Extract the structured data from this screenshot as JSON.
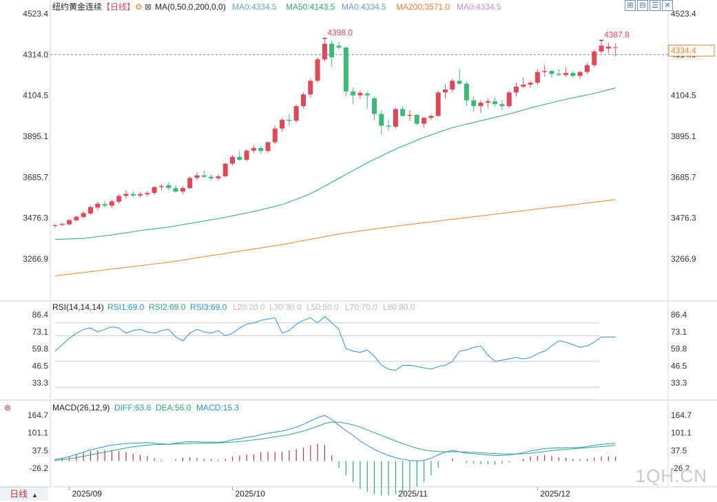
{
  "colors": {
    "up": "#e04858",
    "down": "#3cb878",
    "ma50": "#2aa876",
    "ma200": "#f08030",
    "rsi": "#2f8fd8",
    "diff": "#2f8fd8",
    "dea": "#2aa876",
    "macd_up": "#c0304c",
    "macd_down": "#2aa876",
    "ref": "#5a8ac0"
  },
  "header": {
    "title": "纽约黄金连续",
    "period": "【日线】",
    "gear": "⚙",
    "ma_params": "MA(0,50,0,200,0,0)",
    "ma1": "MA0:4334.5",
    "ma2": "MA50:4143.5",
    "ma3": "MA0:4334.5",
    "ma4": "MA200:3571.0",
    "ma5": "MA0:4334.5"
  },
  "toolbar": {
    "zoom_in": "⊞",
    "zoom_out": "⊟",
    "settings": "☰",
    "close": "✕"
  },
  "rsi_header": {
    "label": "RSI(14,14,14)",
    "rsi1": "RSI1:69.0",
    "rsi2": "RSI2:69.0",
    "rsi3": "RSI3:69.0",
    "l20": "L20:20.0",
    "l30": "L30:30.0",
    "l50": "L50:50.0",
    "l70": "L70:70.0",
    "l80": "L80:80.0"
  },
  "macd_header": {
    "label": "MACD(26,12,9)",
    "diff": "DIFF:63.6",
    "dea": "DEA:56.0",
    "macd": "MACD:15.3"
  },
  "bottom": {
    "period_button": "日线",
    "arrow": "▲"
  },
  "watermark": "1QH.CN",
  "chart_data": {
    "type": "candlestick",
    "title": "纽约黄金连续",
    "price_axis": {
      "ticks": [
        4523.4,
        4314.0,
        4104.5,
        3895.1,
        3685.7,
        3476.3,
        3266.9
      ],
      "ylim": [
        3159,
        4548
      ],
      "current_price": 4334.4,
      "current_label": "4334.4",
      "reference_line": 4314.0
    },
    "annotations": [
      {
        "label": "4398.0",
        "value": 4398.0,
        "index": 38
      },
      {
        "label": "4387.8",
        "value": 4387.8,
        "index": 77
      }
    ],
    "x_labels": [
      {
        "label": "2025/09",
        "index": 2
      },
      {
        "label": "2025/10",
        "index": 25
      },
      {
        "label": "2025/11",
        "index": 48
      },
      {
        "label": "2025/12",
        "index": 68
      }
    ],
    "candles": [
      [
        3436,
        3445,
        3428,
        3440
      ],
      [
        3441,
        3452,
        3435,
        3446
      ],
      [
        3444,
        3470,
        3440,
        3466
      ],
      [
        3465,
        3490,
        3458,
        3483
      ],
      [
        3482,
        3510,
        3475,
        3502
      ],
      [
        3500,
        3540,
        3492,
        3533
      ],
      [
        3530,
        3560,
        3518,
        3550
      ],
      [
        3548,
        3565,
        3530,
        3540
      ],
      [
        3540,
        3570,
        3528,
        3562
      ],
      [
        3560,
        3600,
        3548,
        3590
      ],
      [
        3590,
        3620,
        3575,
        3600
      ],
      [
        3600,
        3615,
        3585,
        3592
      ],
      [
        3592,
        3610,
        3582,
        3600
      ],
      [
        3598,
        3615,
        3588,
        3605
      ],
      [
        3605,
        3640,
        3595,
        3635
      ],
      [
        3635,
        3650,
        3620,
        3640
      ],
      [
        3645,
        3660,
        3620,
        3630
      ],
      [
        3630,
        3645,
        3605,
        3612
      ],
      [
        3612,
        3640,
        3600,
        3630
      ],
      [
        3630,
        3690,
        3625,
        3682
      ],
      [
        3682,
        3710,
        3670,
        3695
      ],
      [
        3695,
        3720,
        3680,
        3688
      ],
      [
        3688,
        3700,
        3670,
        3680
      ],
      [
        3680,
        3700,
        3670,
        3690
      ],
      [
        3690,
        3760,
        3685,
        3755
      ],
      [
        3755,
        3800,
        3745,
        3790
      ],
      [
        3790,
        3820,
        3770,
        3775
      ],
      [
        3775,
        3830,
        3765,
        3822
      ],
      [
        3822,
        3850,
        3810,
        3835
      ],
      [
        3835,
        3845,
        3805,
        3820
      ],
      [
        3820,
        3870,
        3810,
        3865
      ],
      [
        3865,
        3950,
        3855,
        3935
      ],
      [
        3935,
        3990,
        3920,
        3980
      ],
      [
        3980,
        4010,
        3950,
        3975
      ],
      [
        3975,
        4060,
        3965,
        4050
      ],
      [
        4050,
        4120,
        4040,
        4110
      ],
      [
        4110,
        4190,
        4095,
        4180
      ],
      [
        4180,
        4300,
        4170,
        4290
      ],
      [
        4290,
        4398,
        4280,
        4370
      ],
      [
        4370,
        4385,
        4250,
        4300
      ],
      [
        4360,
        4380,
        4340,
        4350
      ],
      [
        4350,
        4355,
        4100,
        4125
      ],
      [
        4125,
        4145,
        4060,
        4105
      ],
      [
        4105,
        4130,
        4085,
        4118
      ],
      [
        4115,
        4125,
        4040,
        4105
      ],
      [
        4090,
        4100,
        3980,
        4010
      ],
      [
        4010,
        4030,
        3905,
        3950
      ],
      [
        3950,
        3980,
        3925,
        3945
      ],
      [
        3945,
        4040,
        3935,
        4035
      ],
      [
        4035,
        4050,
        3995,
        4000
      ],
      [
        4000,
        4030,
        3975,
        4005
      ],
      [
        4005,
        4010,
        3950,
        3960
      ],
      [
        3960,
        3995,
        3940,
        3990
      ],
      [
        3990,
        4010,
        3980,
        4000
      ],
      [
        4000,
        4130,
        3995,
        4120
      ],
      [
        4120,
        4160,
        4090,
        4135
      ],
      [
        4135,
        4190,
        4120,
        4180
      ],
      [
        4180,
        4240,
        4160,
        4165
      ],
      [
        4165,
        4175,
        4050,
        4080
      ],
      [
        4080,
        4100,
        4020,
        4050
      ],
      [
        4050,
        4080,
        4015,
        4068
      ],
      [
        4068,
        4090,
        4040,
        4075
      ],
      [
        4075,
        4095,
        4045,
        4060
      ],
      [
        4060,
        4080,
        4030,
        4050
      ],
      [
        4050,
        4130,
        4040,
        4120
      ],
      [
        4120,
        4170,
        4100,
        4150
      ],
      [
        4150,
        4195,
        4140,
        4160
      ],
      [
        4160,
        4180,
        4145,
        4170
      ],
      [
        4170,
        4240,
        4160,
        4225
      ],
      [
        4225,
        4260,
        4200,
        4230
      ],
      [
        4230,
        4235,
        4195,
        4215
      ],
      [
        4215,
        4240,
        4205,
        4210
      ],
      [
        4210,
        4250,
        4200,
        4220
      ],
      [
        4220,
        4230,
        4195,
        4205
      ],
      [
        4205,
        4230,
        4190,
        4225
      ],
      [
        4225,
        4270,
        4215,
        4260
      ],
      [
        4260,
        4340,
        4250,
        4330
      ],
      [
        4330,
        4388,
        4320,
        4360
      ],
      [
        4345,
        4375,
        4320,
        4355
      ],
      [
        4350,
        4372,
        4305,
        4352
      ]
    ],
    "series": [
      {
        "name": "MA50",
        "values": [
          [
            0,
            3367
          ],
          [
            4,
            3372
          ],
          [
            8,
            3390
          ],
          [
            12,
            3412
          ],
          [
            16,
            3430
          ],
          [
            20,
            3455
          ],
          [
            24,
            3480
          ],
          [
            28,
            3510
          ],
          [
            32,
            3545
          ],
          [
            36,
            3600
          ],
          [
            40,
            3680
          ],
          [
            44,
            3760
          ],
          [
            48,
            3830
          ],
          [
            52,
            3890
          ],
          [
            56,
            3940
          ],
          [
            60,
            3975
          ],
          [
            64,
            4010
          ],
          [
            68,
            4050
          ],
          [
            72,
            4085
          ],
          [
            76,
            4115
          ],
          [
            79,
            4143.5
          ]
        ]
      },
      {
        "name": "MA200",
        "values": [
          [
            0,
            3180
          ],
          [
            8,
            3215
          ],
          [
            16,
            3250
          ],
          [
            24,
            3295
          ],
          [
            32,
            3340
          ],
          [
            40,
            3395
          ],
          [
            48,
            3435
          ],
          [
            56,
            3470
          ],
          [
            64,
            3505
          ],
          [
            72,
            3540
          ],
          [
            79,
            3571
          ]
        ]
      }
    ],
    "rsi": {
      "axis_ticks": [
        86.4,
        73.1,
        59.8,
        46.5,
        33.3
      ],
      "range": [
        27,
        93
      ],
      "ref_lines": [
        80,
        70,
        50,
        30,
        20
      ],
      "values": [
        58,
        63,
        68,
        72,
        75,
        76,
        73,
        75,
        77,
        76,
        72,
        74,
        75,
        73,
        72,
        74,
        75,
        69,
        66,
        72,
        75,
        73,
        72,
        74,
        70,
        72,
        76,
        79,
        80,
        82,
        83,
        84,
        72,
        74,
        79,
        82,
        84,
        80,
        85,
        80,
        75,
        60,
        58,
        57,
        59,
        54,
        47,
        44,
        43,
        47,
        47,
        46,
        45,
        44,
        46,
        47,
        50,
        58,
        59,
        61,
        62,
        55,
        50,
        51,
        52,
        53,
        52,
        53,
        56,
        58,
        62,
        66,
        65,
        63,
        61,
        62,
        65,
        69,
        69,
        69
      ]
    },
    "macd": {
      "axis_ticks": [
        164.7,
        101.1,
        37.5,
        -26.2
      ],
      "range": [
        -70,
        190
      ],
      "diff": [
        5,
        10,
        16,
        24,
        32,
        40,
        46,
        52,
        57,
        60,
        63,
        64,
        65,
        66,
        64,
        62,
        60,
        64,
        68,
        70,
        69,
        68,
        68,
        67,
        70,
        76,
        80,
        85,
        88,
        95,
        100,
        104,
        108,
        114,
        122,
        132,
        144,
        156,
        164,
        150,
        128,
        110,
        92,
        72,
        56,
        42,
        30,
        20,
        12,
        6,
        2,
        0,
        2,
        10,
        22,
        32,
        38,
        33,
        28,
        26,
        24,
        22,
        20,
        20,
        22,
        25,
        30,
        36,
        40,
        45,
        46,
        47,
        48,
        48,
        49,
        52,
        56,
        60,
        62,
        63.6
      ],
      "dea": [
        2,
        5,
        8,
        12,
        17,
        22,
        27,
        32,
        37,
        42,
        47,
        51,
        54,
        57,
        59,
        60,
        60,
        61,
        62,
        63,
        64,
        64,
        65,
        65,
        66,
        68,
        70,
        73,
        76,
        79,
        83,
        87,
        91,
        95,
        101,
        108,
        116,
        125,
        135,
        140,
        140,
        136,
        130,
        122,
        112,
        102,
        92,
        82,
        72,
        62,
        54,
        46,
        40,
        36,
        34,
        33,
        33,
        33,
        32,
        31,
        30,
        28,
        27,
        25,
        25,
        25,
        26,
        28,
        31,
        34,
        37,
        40,
        42,
        44,
        46,
        48,
        50,
        52,
        54,
        56
      ],
      "hist": [
        6,
        10,
        16,
        24,
        30,
        36,
        38,
        40,
        40,
        36,
        32,
        26,
        22,
        18,
        10,
        4,
        0,
        6,
        12,
        14,
        10,
        8,
        6,
        4,
        8,
        16,
        20,
        24,
        24,
        32,
        34,
        34,
        34,
        38,
        42,
        48,
        56,
        62,
        58,
        20,
        -24,
        -52,
        -76,
        -100,
        -112,
        -120,
        -124,
        -124,
        -120,
        -112,
        -104,
        -92,
        -76,
        -52,
        -24,
        -2,
        10,
        0,
        -8,
        -10,
        -12,
        -12,
        -14,
        -10,
        -6,
        0,
        8,
        16,
        18,
        22,
        18,
        14,
        12,
        8,
        6,
        8,
        12,
        16,
        16,
        15.3
      ]
    },
    "rsi_label": "RSI(14,14,14)",
    "macd_label": "MACD(26,12,9)"
  }
}
